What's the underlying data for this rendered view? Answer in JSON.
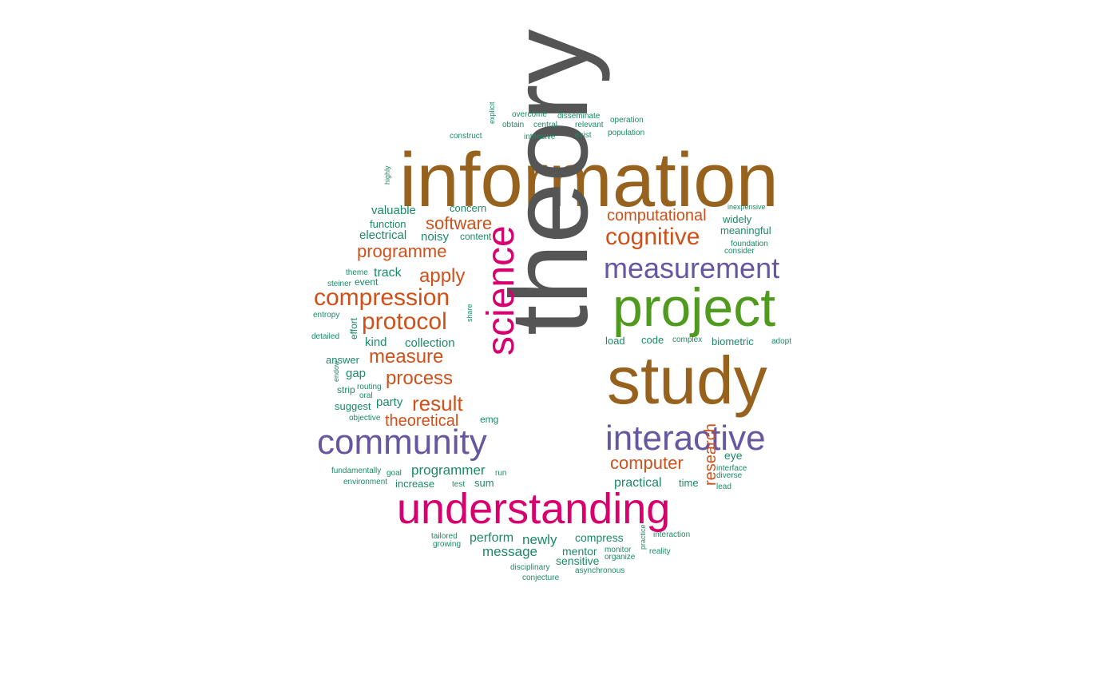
{
  "colors": {
    "brown": "#97611e",
    "gray": "#555555",
    "magenta": "#d6006f",
    "green": "#4f9a1f",
    "purple": "#6657a0",
    "orange": "#cf5119",
    "teal": "#1b8a66"
  },
  "words": [
    {
      "text": "information",
      "color": "brown"
    },
    {
      "text": "theory",
      "color": "gray"
    },
    {
      "text": "study",
      "color": "brown"
    },
    {
      "text": "project",
      "color": "green"
    },
    {
      "text": "understanding",
      "color": "magenta"
    },
    {
      "text": "science",
      "color": "magenta"
    },
    {
      "text": "community",
      "color": "purple"
    },
    {
      "text": "interactive",
      "color": "purple"
    },
    {
      "text": "measurement",
      "color": "purple"
    },
    {
      "text": "cognitive",
      "color": "orange"
    },
    {
      "text": "computational",
      "color": "orange"
    },
    {
      "text": "compression",
      "color": "orange"
    },
    {
      "text": "protocol",
      "color": "orange"
    },
    {
      "text": "software",
      "color": "orange"
    },
    {
      "text": "programme",
      "color": "orange"
    },
    {
      "text": "apply",
      "color": "orange"
    },
    {
      "text": "measure",
      "color": "orange"
    },
    {
      "text": "process",
      "color": "orange"
    },
    {
      "text": "result",
      "color": "orange"
    },
    {
      "text": "theoretical",
      "color": "orange"
    },
    {
      "text": "computer",
      "color": "orange"
    },
    {
      "text": "research",
      "color": "orange"
    },
    {
      "text": "overcome",
      "color": "teal"
    },
    {
      "text": "disseminate",
      "color": "teal"
    },
    {
      "text": "operation",
      "color": "teal"
    },
    {
      "text": "explicit",
      "color": "teal"
    },
    {
      "text": "obtain",
      "color": "teal"
    },
    {
      "text": "central",
      "color": "teal"
    },
    {
      "text": "relevant",
      "color": "teal"
    },
    {
      "text": "population",
      "color": "teal"
    },
    {
      "text": "construct",
      "color": "teal"
    },
    {
      "text": "intensive",
      "color": "teal"
    },
    {
      "text": "exist",
      "color": "teal"
    },
    {
      "text": "highly",
      "color": "teal"
    },
    {
      "text": "inexpensive",
      "color": "teal"
    },
    {
      "text": "valuable",
      "color": "teal"
    },
    {
      "text": "concern",
      "color": "teal"
    },
    {
      "text": "widely",
      "color": "teal"
    },
    {
      "text": "function",
      "color": "teal"
    },
    {
      "text": "meaningful",
      "color": "teal"
    },
    {
      "text": "electrical",
      "color": "teal"
    },
    {
      "text": "noisy",
      "color": "teal"
    },
    {
      "text": "content",
      "color": "teal"
    },
    {
      "text": "foundation",
      "color": "teal"
    },
    {
      "text": "consider",
      "color": "teal"
    },
    {
      "text": "theme",
      "color": "teal"
    },
    {
      "text": "track",
      "color": "teal"
    },
    {
      "text": "steiner",
      "color": "teal"
    },
    {
      "text": "event",
      "color": "teal"
    },
    {
      "text": "entropy",
      "color": "teal"
    },
    {
      "text": "share",
      "color": "teal"
    },
    {
      "text": "detailed",
      "color": "teal"
    },
    {
      "text": "effort",
      "color": "teal"
    },
    {
      "text": "kind",
      "color": "teal"
    },
    {
      "text": "collection",
      "color": "teal"
    },
    {
      "text": "load",
      "color": "teal"
    },
    {
      "text": "code",
      "color": "teal"
    },
    {
      "text": "complex",
      "color": "teal"
    },
    {
      "text": "biometric",
      "color": "teal"
    },
    {
      "text": "adopt",
      "color": "teal"
    },
    {
      "text": "answer",
      "color": "teal"
    },
    {
      "text": "gap",
      "color": "teal"
    },
    {
      "text": "endow",
      "color": "teal"
    },
    {
      "text": "strip",
      "color": "teal"
    },
    {
      "text": "routing",
      "color": "teal"
    },
    {
      "text": "oral",
      "color": "teal"
    },
    {
      "text": "party",
      "color": "teal"
    },
    {
      "text": "suggest",
      "color": "teal"
    },
    {
      "text": "objective",
      "color": "teal"
    },
    {
      "text": "emg",
      "color": "teal"
    },
    {
      "text": "eye",
      "color": "teal"
    },
    {
      "text": "interface",
      "color": "teal"
    },
    {
      "text": "diverse",
      "color": "teal"
    },
    {
      "text": "fundamentally",
      "color": "teal"
    },
    {
      "text": "goal",
      "color": "teal"
    },
    {
      "text": "programmer",
      "color": "teal"
    },
    {
      "text": "run",
      "color": "teal"
    },
    {
      "text": "environment",
      "color": "teal"
    },
    {
      "text": "increase",
      "color": "teal"
    },
    {
      "text": "test",
      "color": "teal"
    },
    {
      "text": "sum",
      "color": "teal"
    },
    {
      "text": "practical",
      "color": "teal"
    },
    {
      "text": "time",
      "color": "teal"
    },
    {
      "text": "lead",
      "color": "teal"
    },
    {
      "text": "tailored",
      "color": "teal"
    },
    {
      "text": "growing",
      "color": "teal"
    },
    {
      "text": "perform",
      "color": "teal"
    },
    {
      "text": "newly",
      "color": "teal"
    },
    {
      "text": "compress",
      "color": "teal"
    },
    {
      "text": "interaction",
      "color": "teal"
    },
    {
      "text": "message",
      "color": "teal"
    },
    {
      "text": "mentor",
      "color": "teal"
    },
    {
      "text": "monitor",
      "color": "teal"
    },
    {
      "text": "organize",
      "color": "teal"
    },
    {
      "text": "practice",
      "color": "teal"
    },
    {
      "text": "reality",
      "color": "teal"
    },
    {
      "text": "sensitive",
      "color": "teal"
    },
    {
      "text": "disciplinary",
      "color": "teal"
    },
    {
      "text": "asynchronous",
      "color": "teal"
    },
    {
      "text": "conjecture",
      "color": "teal"
    }
  ]
}
